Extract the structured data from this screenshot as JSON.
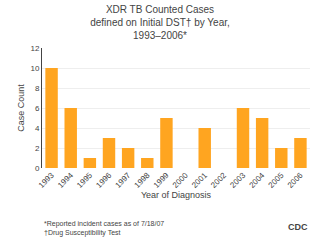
{
  "chart_data": {
    "type": "bar",
    "title": "XDR TB Counted Cases\ndefined on Initial DST† by Year,\n1993–2006*",
    "xlabel": "Year of Diagnosis",
    "ylabel": "Case Count",
    "categories": [
      "1993",
      "1994",
      "1995",
      "1996",
      "1997",
      "1998",
      "1999",
      "2000",
      "2001",
      "2002",
      "2003",
      "2004",
      "2005",
      "2006"
    ],
    "values": [
      10,
      6,
      1,
      3,
      2,
      1,
      5,
      0,
      4,
      0,
      6,
      5,
      2,
      3
    ],
    "color": "#FFA520",
    "ylim": [
      0,
      12
    ],
    "yticks": [
      0,
      2,
      4,
      6,
      8,
      10,
      12
    ],
    "grid": true,
    "annotations": [
      "*Reported incident cases as of 7/18/07",
      "†Drug Susceptibility Test",
      "CDC"
    ]
  }
}
